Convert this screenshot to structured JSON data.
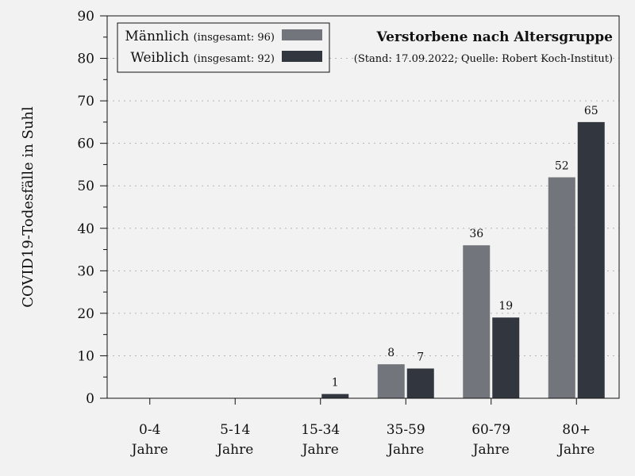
{
  "chart_data": {
    "type": "bar",
    "title": "Verstorbene nach Altersgruppe",
    "subtitle": "(Stand: 17.09.2022; Quelle: Robert Koch-Institut)",
    "ylabel": "COVID19-Todesfälle in Suhl",
    "xlabel": "",
    "ylim": [
      0,
      90
    ],
    "yticks": [
      0,
      10,
      20,
      30,
      40,
      50,
      60,
      70,
      80,
      90
    ],
    "grid": "horizontal dotted",
    "legend_position": "top-left",
    "categories": [
      [
        "0-4",
        "Jahre"
      ],
      [
        "5-14",
        "Jahre"
      ],
      [
        "15-34",
        "Jahre"
      ],
      [
        "35-59",
        "Jahre"
      ],
      [
        "60-79",
        "Jahre"
      ],
      [
        "80+",
        "Jahre"
      ]
    ],
    "series": [
      {
        "name": "Männlich",
        "name_note": "(insgesamt: 96)",
        "color": "#72757c",
        "values": [
          0,
          0,
          0,
          8,
          36,
          52
        ],
        "labels": [
          "",
          "",
          "",
          "8",
          "36",
          "52"
        ]
      },
      {
        "name": "Weiblich",
        "name_note": "(insgesamt: 92)",
        "color": "#32363e",
        "values": [
          0,
          0,
          1,
          7,
          19,
          65
        ],
        "labels": [
          "",
          "",
          "1",
          "7",
          "19",
          "65"
        ]
      }
    ]
  }
}
